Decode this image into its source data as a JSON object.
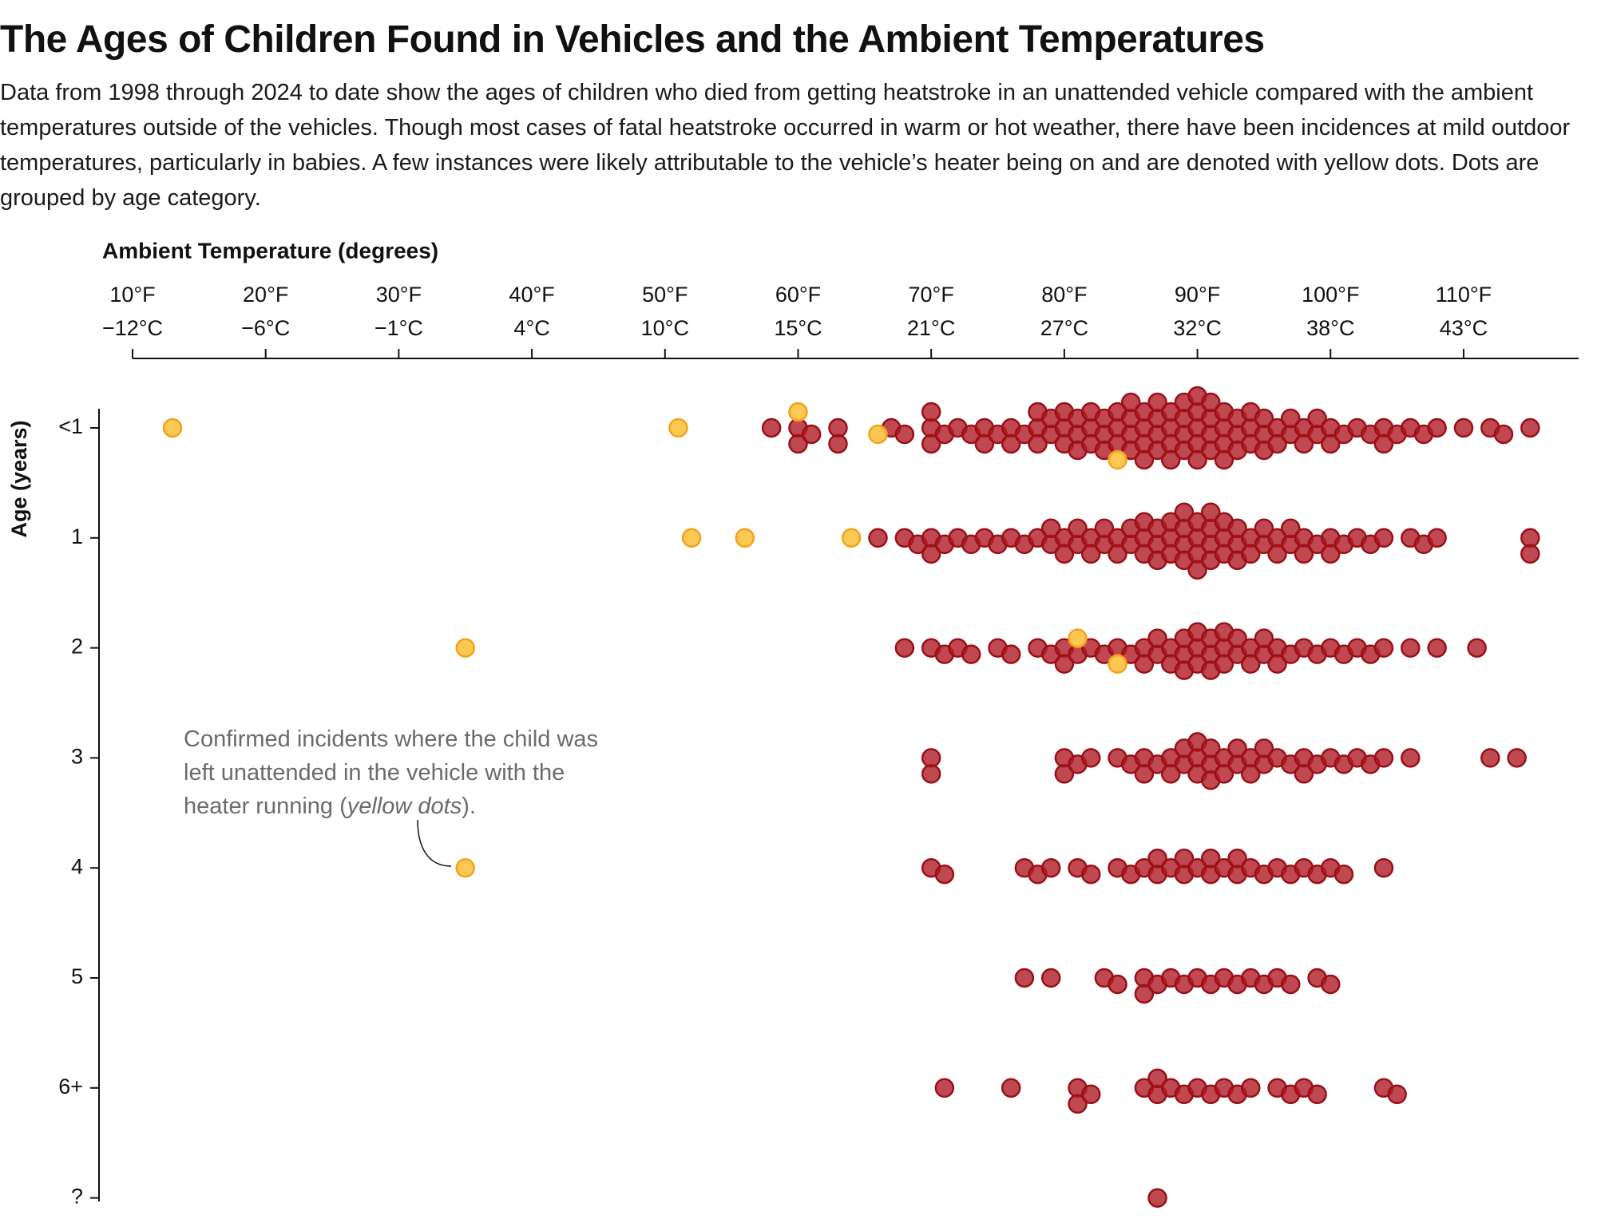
{
  "chart_data": {
    "type": "beeswarm",
    "title": "The Ages of Children Found in Vehicles and the Ambient Temperatures",
    "subtitle": "Data from 1998 through 2024 to date show the ages of children who died from getting heatstroke in an unattended vehicle compared with the ambient temperatures outside of the vehicles. Though most cases of fatal heatstroke occurred in warm or hot weather, there have been incidences at mild outdoor temperatures, particularly in babies. A few instances were likely attributable to the vehicle’s heater being on and are denoted with yellow dots. Dots are grouped by age category.",
    "x_label": "Ambient Temperature (degrees)",
    "y_label": "Age (years)",
    "xlim": [
      10,
      119
    ],
    "xticks": [
      {
        "value": 10,
        "label": "10°F",
        "label_c": "−12°C"
      },
      {
        "value": 20,
        "label": "20°F",
        "label_c": "−6°C"
      },
      {
        "value": 30,
        "label": "30°F",
        "label_c": "−1°C"
      },
      {
        "value": 40,
        "label": "40°F",
        "label_c": "4°C"
      },
      {
        "value": 50,
        "label": "50°F",
        "label_c": "10°C"
      },
      {
        "value": 60,
        "label": "60°F",
        "label_c": "15°C"
      },
      {
        "value": 70,
        "label": "70°F",
        "label_c": "21°C"
      },
      {
        "value": 80,
        "label": "80°F",
        "label_c": "27°C"
      },
      {
        "value": 90,
        "label": "90°F",
        "label_c": "32°C"
      },
      {
        "value": 100,
        "label": "100°F",
        "label_c": "38°C"
      },
      {
        "value": 110,
        "label": "110°F",
        "label_c": "43°C"
      }
    ],
    "categories": [
      "<1",
      "1",
      "2",
      "3",
      "4",
      "5",
      "6+",
      "?"
    ],
    "series": [
      {
        "color": "#b01c25",
        "stroke": "#9a0f17",
        "values": [
          [
            58,
            60,
            60,
            61,
            63,
            63,
            67,
            68,
            70,
            70,
            70,
            71,
            72,
            73,
            74,
            74,
            75,
            76,
            76,
            77,
            78,
            78,
            78,
            79,
            79,
            80,
            80,
            80,
            81,
            81,
            81,
            82,
            82,
            82,
            83,
            83,
            83,
            84,
            84,
            84,
            85,
            85,
            85,
            85,
            86,
            86,
            86,
            86,
            87,
            87,
            87,
            87,
            88,
            88,
            88,
            88,
            89,
            89,
            89,
            89,
            90,
            90,
            90,
            90,
            90,
            91,
            91,
            91,
            91,
            92,
            92,
            92,
            92,
            93,
            93,
            93,
            94,
            94,
            94,
            95,
            95,
            95,
            96,
            96,
            97,
            97,
            98,
            98,
            99,
            99,
            100,
            100,
            101,
            102,
            103,
            104,
            104,
            105,
            106,
            107,
            108,
            110,
            112,
            113,
            115
          ],
          [
            66,
            68,
            69,
            70,
            70,
            71,
            72,
            73,
            74,
            75,
            76,
            77,
            78,
            79,
            79,
            80,
            80,
            81,
            81,
            82,
            82,
            83,
            83,
            84,
            84,
            85,
            85,
            86,
            86,
            86,
            87,
            87,
            87,
            88,
            88,
            88,
            89,
            89,
            89,
            89,
            90,
            90,
            90,
            90,
            91,
            91,
            91,
            91,
            92,
            92,
            92,
            93,
            93,
            93,
            94,
            94,
            95,
            95,
            96,
            96,
            97,
            97,
            98,
            98,
            99,
            100,
            100,
            101,
            102,
            103,
            104,
            106,
            107,
            108,
            115,
            115
          ],
          [
            68,
            70,
            71,
            72,
            73,
            75,
            76,
            78,
            79,
            80,
            80,
            81,
            82,
            83,
            84,
            85,
            86,
            86,
            87,
            87,
            88,
            88,
            89,
            89,
            89,
            90,
            90,
            90,
            91,
            91,
            91,
            92,
            92,
            92,
            93,
            93,
            94,
            94,
            95,
            95,
            96,
            96,
            97,
            98,
            99,
            100,
            101,
            102,
            103,
            104,
            106,
            108,
            111
          ],
          [
            70,
            70,
            80,
            80,
            81,
            82,
            84,
            85,
            86,
            86,
            87,
            88,
            88,
            89,
            89,
            90,
            90,
            90,
            91,
            91,
            91,
            92,
            92,
            93,
            93,
            94,
            94,
            95,
            95,
            96,
            97,
            98,
            98,
            99,
            100,
            101,
            102,
            103,
            104,
            106,
            112,
            114
          ],
          [
            70,
            71,
            77,
            78,
            79,
            81,
            82,
            84,
            85,
            86,
            87,
            87,
            88,
            89,
            89,
            90,
            91,
            91,
            92,
            93,
            93,
            94,
            95,
            96,
            97,
            98,
            99,
            100,
            101,
            104
          ],
          [
            77,
            79,
            83,
            84,
            86,
            86,
            87,
            88,
            89,
            90,
            91,
            92,
            93,
            94,
            95,
            96,
            97,
            99,
            100
          ],
          [
            71,
            76,
            81,
            81,
            82,
            86,
            87,
            87,
            88,
            89,
            90,
            91,
            92,
            93,
            94,
            96,
            97,
            98,
            99,
            104,
            105
          ],
          [
            87
          ]
        ]
      },
      {
        "color": "#fbc54a",
        "stroke": "#f4a21d",
        "values": [
          [
            13,
            51,
            60,
            66,
            84
          ],
          [
            52,
            56,
            64
          ],
          [
            35,
            81,
            84
          ],
          [],
          [
            35
          ],
          [],
          [],
          []
        ]
      }
    ],
    "annotation": {
      "text": "Confirmed incidents where the child was left unattended in the vehicle with the heater running (",
      "emphasis": "yellow dots",
      "end": ")."
    }
  }
}
